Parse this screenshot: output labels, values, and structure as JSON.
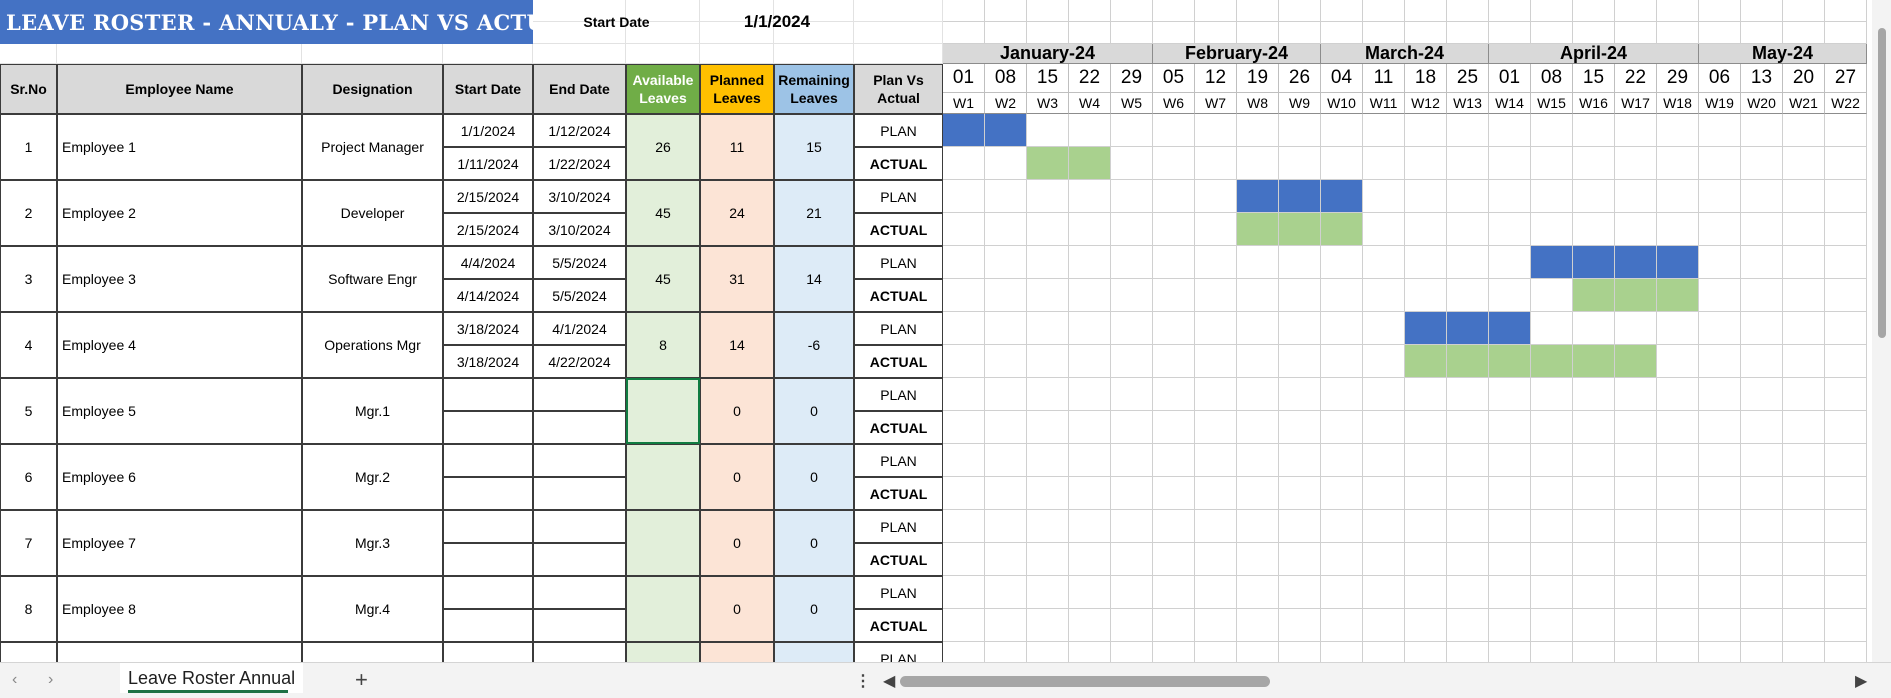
{
  "title": "LEAVE ROSTER - ANNUALY - PLAN VS ACTUAL",
  "start_date_label": "Start Date",
  "start_date_value": "1/1/2024",
  "columns": {
    "srno": "Sr.No",
    "name": "Employee Name",
    "designation": "Designation",
    "start": "Start Date",
    "end": "End Date",
    "available": "Available Leaves",
    "planned": "Planned Leaves",
    "remaining": "Remaining Leaves",
    "planvsactual": "Plan Vs Actual"
  },
  "months": [
    {
      "label": "January-24",
      "weeks": 5
    },
    {
      "label": "February-24",
      "weeks": 4
    },
    {
      "label": "March-24",
      "weeks": 4
    },
    {
      "label": "April-24",
      "weeks": 5
    },
    {
      "label": "May-24",
      "weeks": 4
    }
  ],
  "days": [
    "01",
    "08",
    "15",
    "22",
    "29",
    "05",
    "12",
    "19",
    "26",
    "04",
    "11",
    "18",
    "25",
    "01",
    "08",
    "15",
    "22",
    "29",
    "06",
    "13",
    "20",
    "27"
  ],
  "weeks": [
    "W1",
    "W2",
    "W3",
    "W4",
    "W5",
    "W6",
    "W7",
    "W8",
    "W9",
    "W10",
    "W11",
    "W12",
    "W13",
    "W14",
    "W15",
    "W16",
    "W17",
    "W18",
    "W19",
    "W20",
    "W21",
    "W22"
  ],
  "plan_label": "PLAN",
  "actual_label": "ACTUAL",
  "employees": [
    {
      "sr": "1",
      "name": "Employee 1",
      "designation": "Project Manager",
      "plan_start": "1/1/2024",
      "plan_end": "1/12/2024",
      "act_start": "1/11/2024",
      "act_end": "1/22/2024",
      "available": "26",
      "planned": "11",
      "remaining": "15",
      "plan_weeks": [
        1,
        2
      ],
      "act_weeks": [
        3,
        4
      ]
    },
    {
      "sr": "2",
      "name": "Employee 2",
      "designation": "Developer",
      "plan_start": "2/15/2024",
      "plan_end": "3/10/2024",
      "act_start": "2/15/2024",
      "act_end": "3/10/2024",
      "available": "45",
      "planned": "24",
      "remaining": "21",
      "plan_weeks": [
        8,
        9,
        10
      ],
      "act_weeks": [
        8,
        9,
        10
      ]
    },
    {
      "sr": "3",
      "name": "Employee 3",
      "designation": "Software Engr",
      "plan_start": "4/4/2024",
      "plan_end": "5/5/2024",
      "act_start": "4/14/2024",
      "act_end": "5/5/2024",
      "available": "45",
      "planned": "31",
      "remaining": "14",
      "plan_weeks": [
        15,
        16,
        17,
        18
      ],
      "act_weeks": [
        16,
        17,
        18
      ]
    },
    {
      "sr": "4",
      "name": "Employee 4",
      "designation": "Operations Mgr",
      "plan_start": "3/18/2024",
      "plan_end": "4/1/2024",
      "act_start": "3/18/2024",
      "act_end": "4/22/2024",
      "available": "8",
      "planned": "14",
      "remaining": "-6",
      "plan_weeks": [
        12,
        13,
        14
      ],
      "act_weeks": [
        12,
        13,
        14,
        15,
        16,
        17
      ]
    },
    {
      "sr": "5",
      "name": "Employee 5",
      "designation": "Mgr.1",
      "plan_start": "",
      "plan_end": "",
      "act_start": "",
      "act_end": "",
      "available": "",
      "planned": "0",
      "remaining": "0",
      "plan_weeks": [],
      "act_weeks": []
    },
    {
      "sr": "6",
      "name": "Employee 6",
      "designation": "Mgr.2",
      "plan_start": "",
      "plan_end": "",
      "act_start": "",
      "act_end": "",
      "available": "",
      "planned": "0",
      "remaining": "0",
      "plan_weeks": [],
      "act_weeks": []
    },
    {
      "sr": "7",
      "name": "Employee 7",
      "designation": "Mgr.3",
      "plan_start": "",
      "plan_end": "",
      "act_start": "",
      "act_end": "",
      "available": "",
      "planned": "0",
      "remaining": "0",
      "plan_weeks": [],
      "act_weeks": []
    },
    {
      "sr": "8",
      "name": "Employee 8",
      "designation": "Mgr.4",
      "plan_start": "",
      "plan_end": "",
      "act_start": "",
      "act_end": "",
      "available": "",
      "planned": "0",
      "remaining": "0",
      "plan_weeks": [],
      "act_weeks": []
    }
  ],
  "sheet_tab": "Leave Roster Annual",
  "add_sheet": "+",
  "icons": {
    "prev": "chevron-left-icon",
    "next": "chevron-right-icon",
    "more": "more-vertical-icon"
  }
}
